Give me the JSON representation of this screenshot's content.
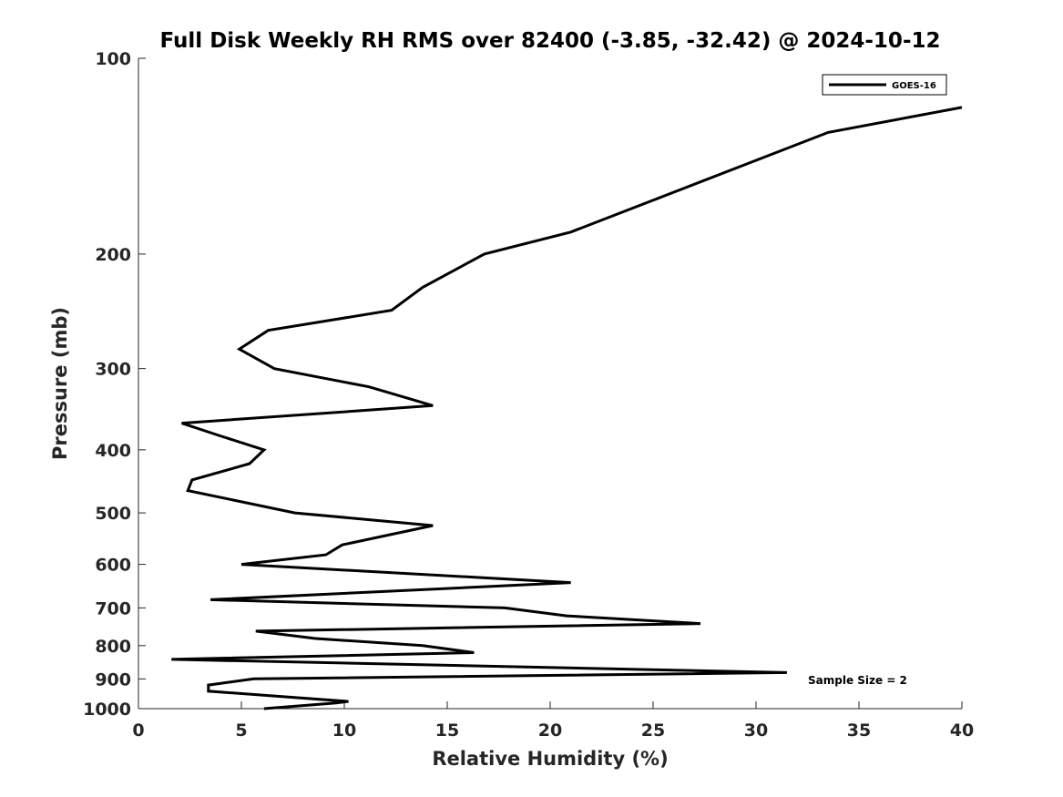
{
  "chart_data": {
    "type": "line",
    "title": "Full Disk Weekly RH RMS over 82400 (-3.85, -32.42) @ 2024-10-12",
    "xlabel": "Relative Humidity (%)",
    "ylabel": "Pressure (mb)",
    "xlim": [
      0,
      40
    ],
    "ylim": [
      100,
      1000
    ],
    "yscale": "log",
    "y_reversed": true,
    "x_ticks": [
      0,
      5,
      10,
      15,
      20,
      25,
      30,
      35,
      40
    ],
    "y_ticks": [
      100,
      200,
      300,
      400,
      500,
      600,
      700,
      800,
      900,
      1000
    ],
    "grid": false,
    "legend_position": "top-right",
    "annotation": "Sample Size = 2",
    "series": [
      {
        "name": "GOES-16",
        "color": "#000000",
        "points": [
          {
            "x": 40.0,
            "y": 119
          },
          {
            "x": 33.5,
            "y": 130
          },
          {
            "x": 21.0,
            "y": 185
          },
          {
            "x": 16.8,
            "y": 200
          },
          {
            "x": 13.8,
            "y": 225
          },
          {
            "x": 12.3,
            "y": 244
          },
          {
            "x": 6.3,
            "y": 262
          },
          {
            "x": 4.9,
            "y": 280
          },
          {
            "x": 6.6,
            "y": 300
          },
          {
            "x": 11.2,
            "y": 320
          },
          {
            "x": 14.3,
            "y": 342
          },
          {
            "x": 2.1,
            "y": 364
          },
          {
            "x": 3.9,
            "y": 380
          },
          {
            "x": 6.1,
            "y": 400
          },
          {
            "x": 5.4,
            "y": 420
          },
          {
            "x": 2.6,
            "y": 445
          },
          {
            "x": 2.4,
            "y": 462
          },
          {
            "x": 7.6,
            "y": 500
          },
          {
            "x": 14.3,
            "y": 523
          },
          {
            "x": 9.9,
            "y": 560
          },
          {
            "x": 9.1,
            "y": 580
          },
          {
            "x": 5.0,
            "y": 600
          },
          {
            "x": 21.0,
            "y": 640
          },
          {
            "x": 3.5,
            "y": 680
          },
          {
            "x": 17.8,
            "y": 700
          },
          {
            "x": 20.8,
            "y": 720
          },
          {
            "x": 27.3,
            "y": 740
          },
          {
            "x": 5.7,
            "y": 760
          },
          {
            "x": 8.6,
            "y": 780
          },
          {
            "x": 13.8,
            "y": 800
          },
          {
            "x": 16.3,
            "y": 820
          },
          {
            "x": 1.6,
            "y": 840
          },
          {
            "x": 31.5,
            "y": 880
          },
          {
            "x": 5.6,
            "y": 900
          },
          {
            "x": 3.4,
            "y": 920
          },
          {
            "x": 3.4,
            "y": 940
          },
          {
            "x": 10.2,
            "y": 975
          },
          {
            "x": 9.6,
            "y": 980
          },
          {
            "x": 6.1,
            "y": 1000
          }
        ]
      }
    ]
  }
}
